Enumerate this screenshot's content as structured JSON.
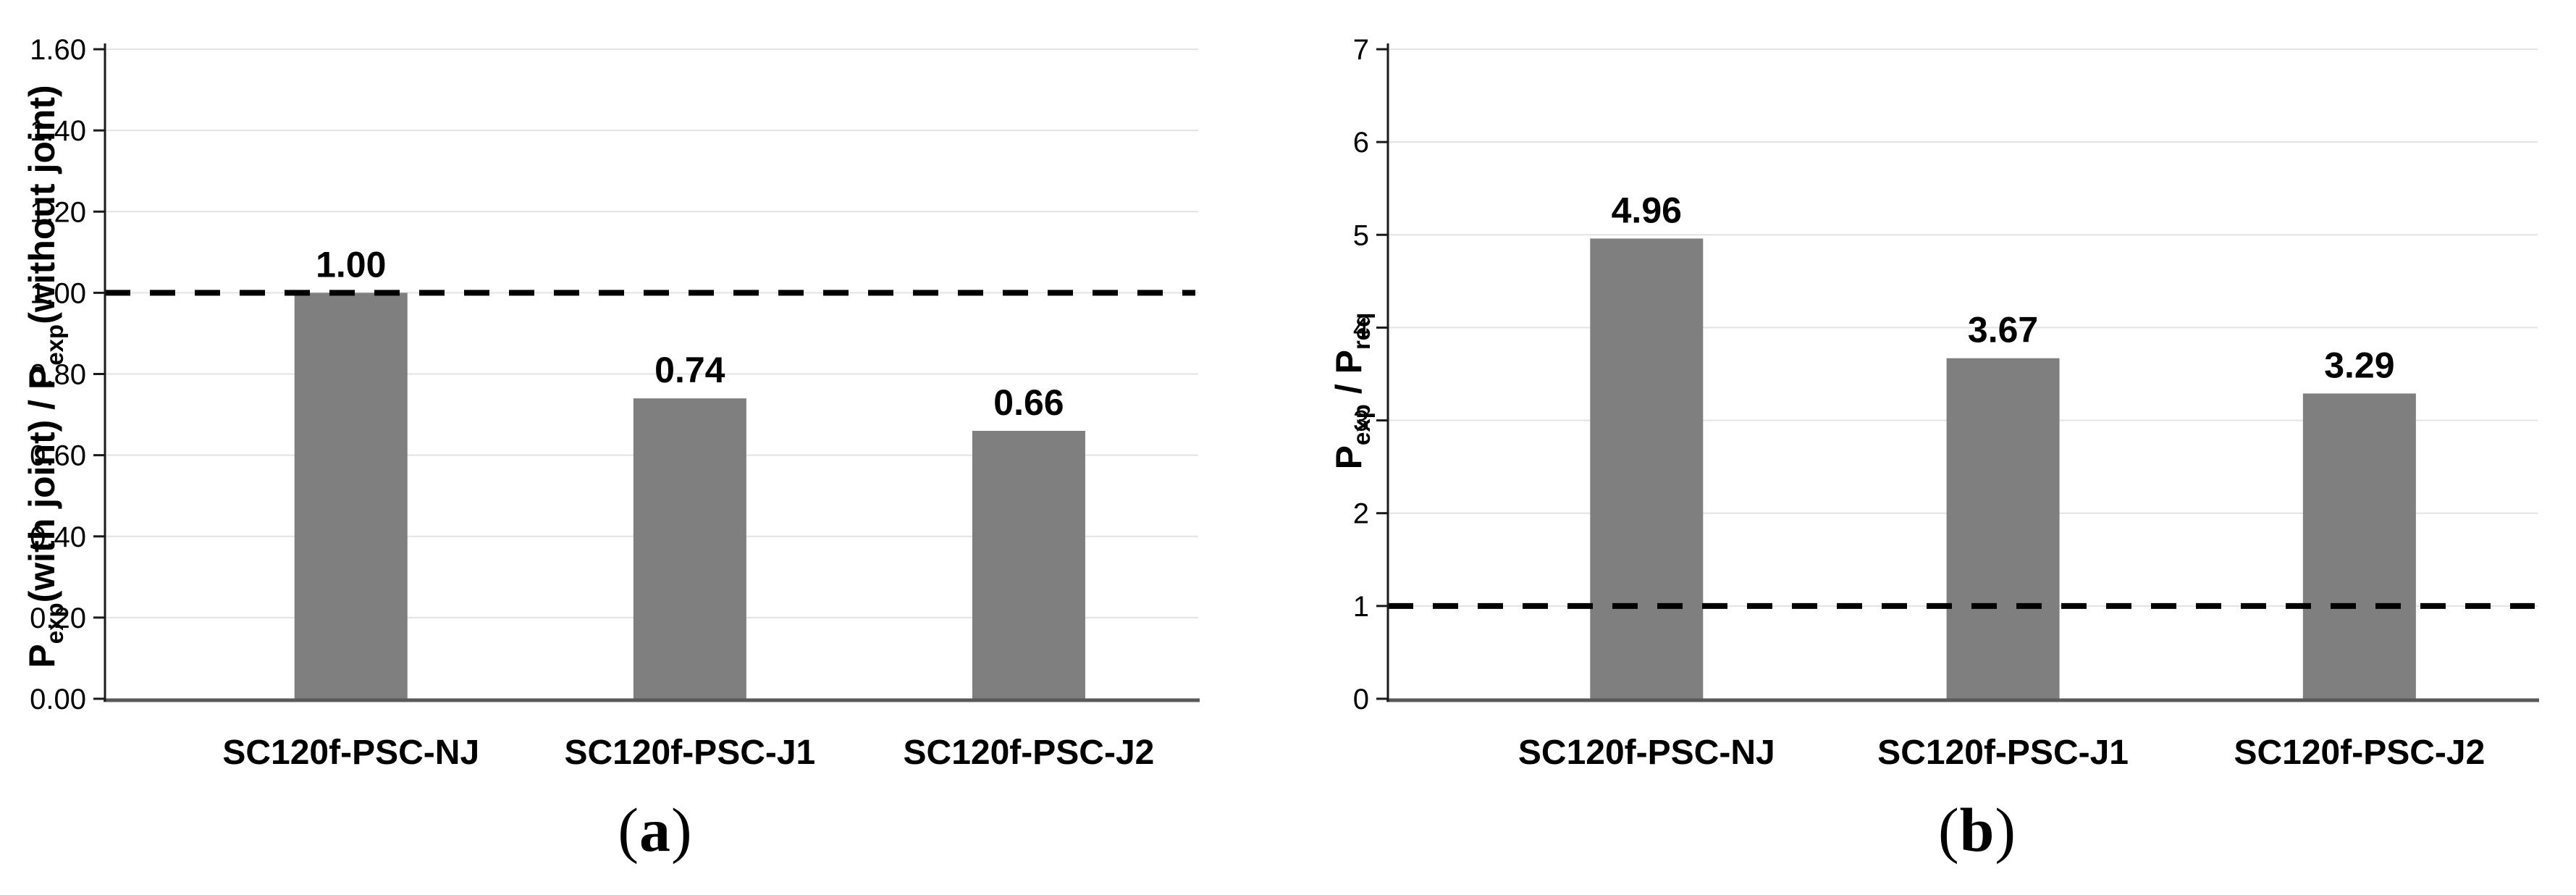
{
  "figure": {
    "background": "#FFFFFF",
    "panels": [
      "a",
      "b"
    ]
  },
  "chart_data": [
    {
      "type": "bar",
      "panel": "a",
      "caption": {
        "open": "(",
        "letter": "a",
        "close": ")"
      },
      "categories": [
        "SC120f-PSC-NJ",
        "SC120f-PSC-J1",
        "SC120f-PSC-J2"
      ],
      "values": [
        1.0,
        0.74,
        0.66
      ],
      "value_labels": [
        "1.00",
        "0.74",
        "0.66"
      ],
      "ylabel_plain": "Pexp(with joint) / Pexp(without joint)",
      "ylabel_parts": [
        {
          "t": "P"
        },
        {
          "t": "exp",
          "sub": true
        },
        {
          "t": "(with joint) / P"
        },
        {
          "t": "exp",
          "sub": true
        },
        {
          "t": "(without joint)"
        }
      ],
      "xlabel": "",
      "ylim": [
        0,
        1.6
      ],
      "ytick_step": 0.2,
      "ytick_labels": [
        "0.00",
        "0.20",
        "0.40",
        "0.60",
        "0.80",
        "1.00",
        "1.20",
        "1.40",
        "1.60"
      ],
      "ref_line_value": 1.0,
      "ref_line_style": "dashed",
      "grid": true,
      "legend": false,
      "colors": {
        "bar": "#7F7F7F",
        "grid": "#E3E3E3",
        "x_axis": "#595959",
        "y_axis": "#1A1A1A",
        "ref_line": "#000000",
        "text": "#000000"
      }
    },
    {
      "type": "bar",
      "panel": "b",
      "caption": {
        "open": "(",
        "letter": "b",
        "close": ")"
      },
      "categories": [
        "SC120f-PSC-NJ",
        "SC120f-PSC-J1",
        "SC120f-PSC-J2"
      ],
      "values": [
        4.96,
        3.67,
        3.29
      ],
      "value_labels": [
        "4.96",
        "3.67",
        "3.29"
      ],
      "ylabel_plain": "Pexp / Preq",
      "ylabel_parts": [
        {
          "t": "P"
        },
        {
          "t": "exp",
          "sub": true
        },
        {
          "t": " / P"
        },
        {
          "t": "req",
          "sub": true
        }
      ],
      "xlabel": "",
      "ylim": [
        0,
        7
      ],
      "ytick_step": 1,
      "ytick_labels": [
        "0",
        "1",
        "2",
        "3",
        "4",
        "5",
        "6",
        "7"
      ],
      "ref_line_value": 1.0,
      "ref_line_style": "dashed",
      "grid": true,
      "legend": false,
      "colors": {
        "bar": "#7F7F7F",
        "grid": "#E3E3E3",
        "x_axis": "#595959",
        "y_axis": "#1A1A1A",
        "ref_line": "#000000",
        "text": "#000000"
      }
    }
  ]
}
